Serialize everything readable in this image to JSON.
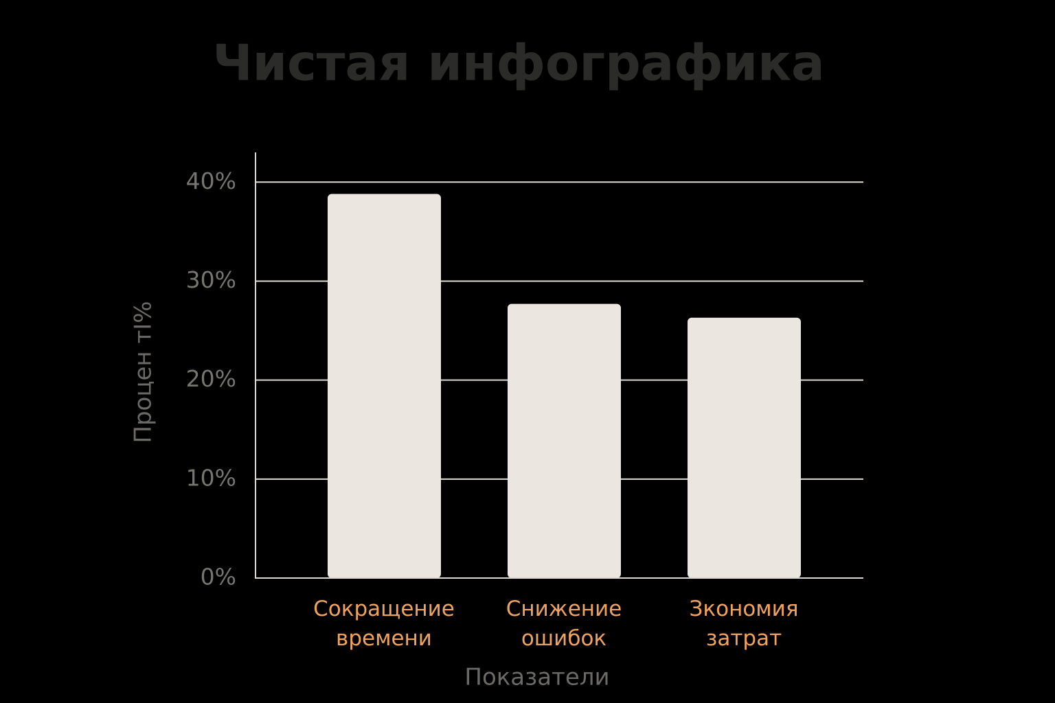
{
  "chart_data": {
    "type": "bar",
    "title": "Чистая инфографика",
    "categories": [
      "Сокращение времени",
      "Снижение ошибок",
      "Зкономия затрат"
    ],
    "values": [
      38.8,
      27.7,
      26.3
    ],
    "color": "#ebe7e0",
    "category_color": "#f0a35e",
    "x_label": "Показатели",
    "y_label": "Процен тІ%",
    "ylim": [
      0,
      43
    ],
    "yticks": [
      {
        "value": 0,
        "label": "0%"
      },
      {
        "value": 10,
        "label": "10%"
      },
      {
        "value": 20,
        "label": "20%"
      },
      {
        "value": 30,
        "label": "30%"
      },
      {
        "value": 40,
        "label": "40%"
      }
    ],
    "grid": true
  }
}
